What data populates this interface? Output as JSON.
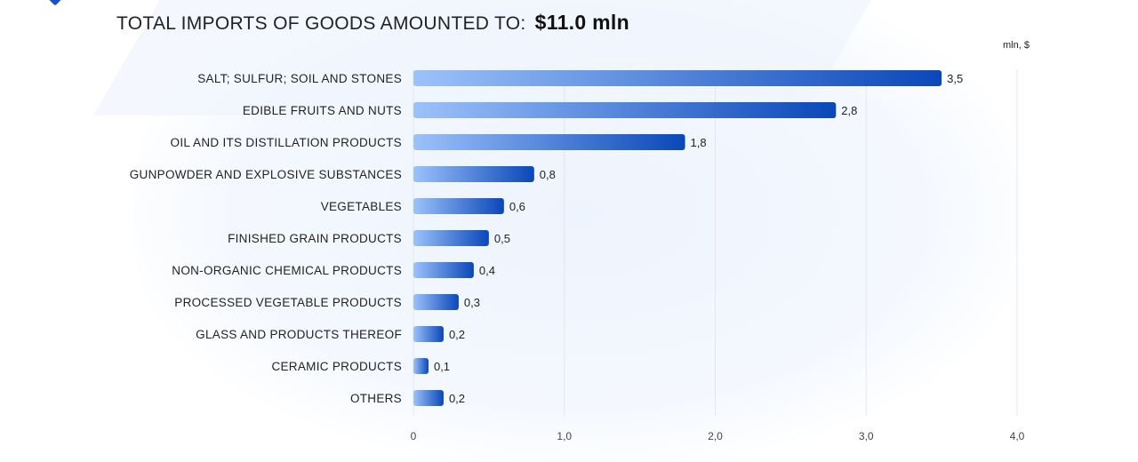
{
  "chart_data": {
    "type": "bar",
    "orientation": "horizontal",
    "title": "TOTAL IMPORTS OF GOODS AMOUNTED TO:",
    "title_total": "$11.0 mln",
    "unit_label": "mln, $",
    "categories": [
      "SALT; SULFUR; SOIL AND STONES",
      "EDIBLE FRUITS AND NUTS",
      "OIL AND ITS DISTILLATION PRODUCTS",
      "GUNPOWDER AND EXPLOSIVE SUBSTANCES",
      "VEGETABLES",
      "FINISHED GRAIN PRODUCTS",
      "NON-ORGANIC CHEMICAL PRODUCTS",
      "PROCESSED VEGETABLE PRODUCTS",
      "GLASS AND PRODUCTS THEREOF",
      "CERAMIC PRODUCTS",
      "OTHERS"
    ],
    "values": [
      3.5,
      2.8,
      1.8,
      0.8,
      0.6,
      0.5,
      0.4,
      0.3,
      0.2,
      0.1,
      0.2
    ],
    "value_labels": [
      "3,5",
      "2,8",
      "1,8",
      "0,8",
      "0,6",
      "0,5",
      "0,4",
      "0,3",
      "0,2",
      "0,1",
      "0,2"
    ],
    "xlim": [
      0,
      4
    ],
    "xticks": [
      0,
      1,
      2,
      3,
      4
    ],
    "xtick_labels": [
      "0",
      "1,0",
      "2,0",
      "3,0",
      "4,0"
    ],
    "grid": true,
    "colors": {
      "bar_start": "#9cc2fb",
      "bar_end": "#0a47b8",
      "grid": "#e3e6ec"
    }
  }
}
